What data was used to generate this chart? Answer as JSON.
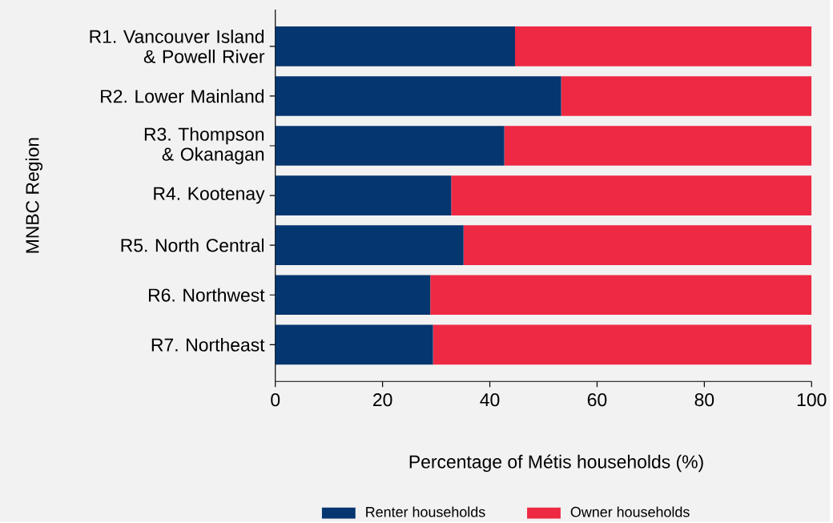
{
  "chart_data": {
    "type": "bar",
    "orientation": "horizontal",
    "stacked": true,
    "xlabel": "Percentage of Métis households (%)",
    "ylabel": "MNBC Region",
    "categories": [
      "R1. Vancouver Island & Powell River",
      "R2. Lower Mainland",
      "R3. Thompson & Okanagan",
      "R4. Kootenay",
      "R5. North Central",
      "R6. Northwest",
      "R7. Northeast"
    ],
    "series": [
      {
        "name": "Renter households",
        "color": "#06366f",
        "values": [
          44.7,
          53.3,
          42.7,
          32.8,
          35.1,
          28.9,
          29.4
        ]
      },
      {
        "name": "Owner households",
        "color": "#ee2944",
        "values": [
          55.3,
          46.7,
          57.3,
          67.2,
          64.9,
          71.1,
          70.6
        ]
      }
    ],
    "xlim": [
      0,
      100
    ],
    "xticks": [
      0,
      20,
      40,
      60,
      80,
      100
    ],
    "grid": false,
    "legend": "bottom"
  }
}
